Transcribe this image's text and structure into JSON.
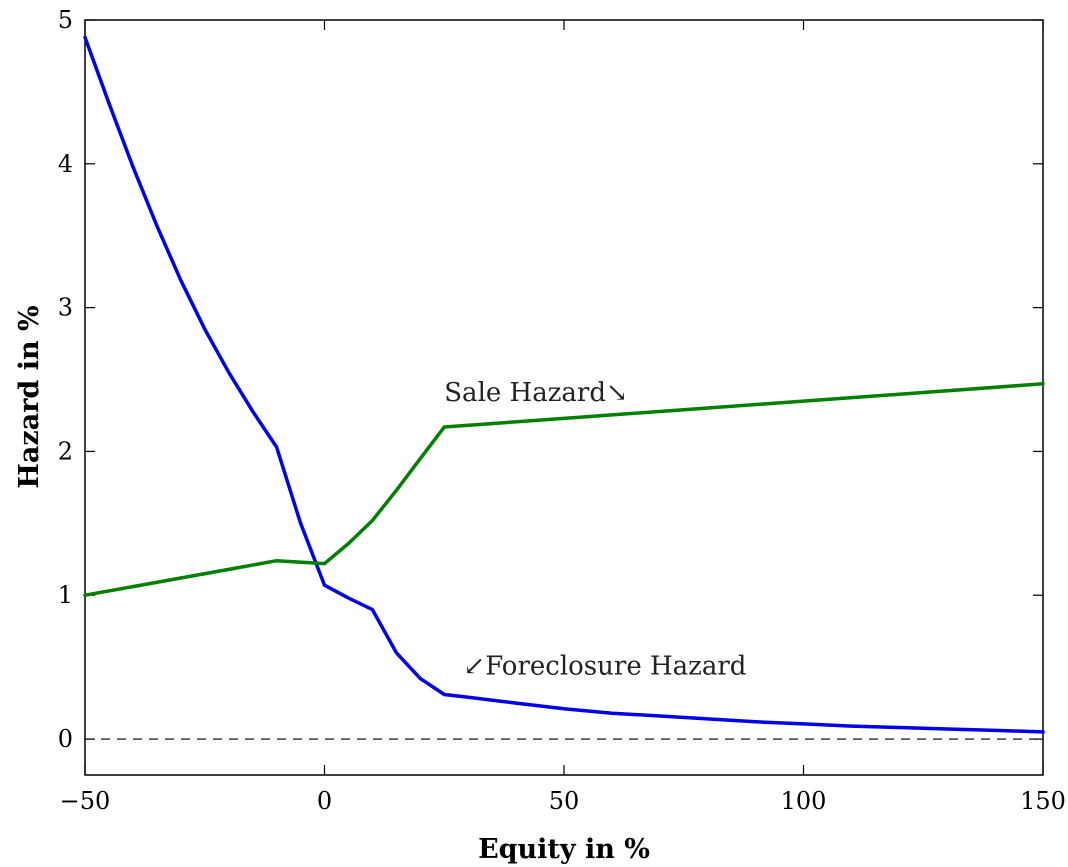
{
  "chart_data": {
    "type": "line",
    "xlabel": "Equity in %",
    "ylabel": "Hazard in %",
    "xlim": [
      -50,
      150
    ],
    "ylim": [
      -0.25,
      5
    ],
    "xticks": [
      -50,
      0,
      50,
      100,
      150
    ],
    "xtick_labels": [
      "−50",
      "0",
      "50",
      "100",
      "150"
    ],
    "yticks": [
      0,
      1,
      2,
      3,
      4,
      5
    ],
    "ytick_labels": [
      "0",
      "1",
      "2",
      "3",
      "4",
      "5"
    ],
    "grid": false,
    "legend": "none",
    "reference_line": {
      "y": 0,
      "style": "dashed",
      "color": "#000000"
    },
    "series": [
      {
        "color": "#0000ee",
        "x": [
          -50,
          -45,
          -40,
          -35,
          -30,
          -25,
          -20,
          -15,
          -10,
          -5,
          0,
          5,
          10,
          15,
          20,
          25,
          30,
          40,
          50,
          60,
          70,
          80,
          90,
          100,
          110,
          120,
          130,
          140,
          150
        ],
        "y": [
          4.88,
          4.42,
          3.98,
          3.57,
          3.19,
          2.85,
          2.55,
          2.28,
          2.03,
          1.5,
          1.07,
          0.98,
          0.9,
          0.6,
          0.42,
          0.31,
          0.29,
          0.25,
          0.21,
          0.18,
          0.16,
          0.14,
          0.12,
          0.105,
          0.09,
          0.08,
          0.07,
          0.06,
          0.05
        ]
      },
      {
        "color": "#008000",
        "x": [
          -50,
          -40,
          -30,
          -20,
          -10,
          0,
          5,
          10,
          15,
          20,
          25,
          50,
          75,
          100,
          125,
          150
        ],
        "y": [
          1.0,
          1.06,
          1.12,
          1.18,
          1.24,
          1.22,
          1.36,
          1.52,
          1.73,
          1.95,
          2.17,
          2.23,
          2.29,
          2.35,
          2.41,
          2.47
        ]
      }
    ],
    "annotations": [
      {
        "text": "Sale Hazard↘",
        "x": 25,
        "y": 2.35
      },
      {
        "text": "↙Foreclosure Hazard",
        "x": 29,
        "y": 0.45
      }
    ]
  }
}
